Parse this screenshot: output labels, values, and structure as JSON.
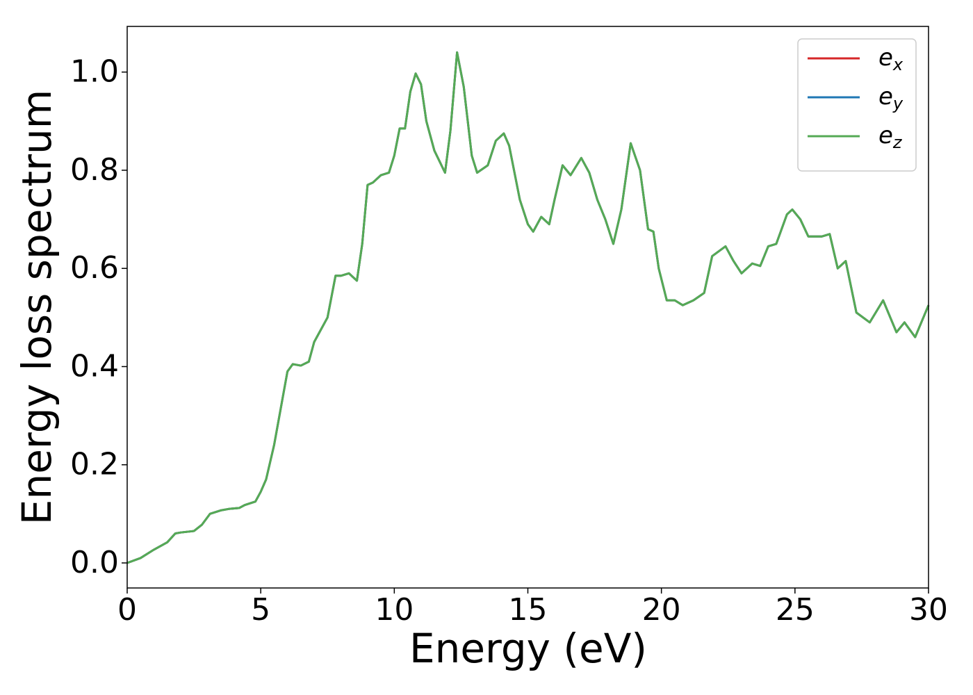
{
  "chart_data": {
    "type": "line",
    "xlabel": "Energy (eV)",
    "ylabel": "Energy loss spectrum",
    "x": [
      0,
      0.5,
      1.0,
      1.5,
      1.8,
      2.0,
      2.5,
      2.8,
      3.1,
      3.5,
      3.8,
      4.2,
      4.4,
      4.8,
      5.0,
      5.2,
      5.5,
      5.8,
      6.0,
      6.2,
      6.5,
      6.8,
      7.0,
      7.2,
      7.5,
      7.8,
      8.0,
      8.3,
      8.6,
      8.8,
      9.0,
      9.2,
      9.5,
      9.8,
      10.0,
      10.2,
      10.4,
      10.6,
      10.8,
      11.0,
      11.2,
      11.5,
      11.9,
      12.1,
      12.35,
      12.6,
      12.9,
      13.1,
      13.5,
      13.8,
      14.1,
      14.3,
      14.7,
      15.0,
      15.2,
      15.5,
      15.8,
      16.0,
      16.3,
      16.6,
      17.0,
      17.3,
      17.6,
      17.9,
      18.2,
      18.5,
      18.85,
      19.2,
      19.5,
      19.7,
      19.9,
      20.2,
      20.5,
      20.8,
      21.2,
      21.6,
      21.9,
      22.4,
      22.7,
      23.0,
      23.4,
      23.7,
      24.0,
      24.3,
      24.7,
      24.9,
      25.2,
      25.5,
      26.0,
      26.3,
      26.6,
      26.9,
      27.3,
      27.8,
      28.3,
      28.8,
      29.1,
      29.5,
      30.0
    ],
    "series": [
      {
        "name": "ex",
        "color": "#d62728",
        "values": [
          0.0,
          0.01,
          0.027,
          0.042,
          0.06,
          0.062,
          0.065,
          0.078,
          0.1,
          0.107,
          0.11,
          0.112,
          0.118,
          0.125,
          0.145,
          0.17,
          0.24,
          0.33,
          0.39,
          0.405,
          0.402,
          0.41,
          0.45,
          0.47,
          0.5,
          0.585,
          0.585,
          0.59,
          0.575,
          0.65,
          0.77,
          0.775,
          0.79,
          0.795,
          0.83,
          0.885,
          0.885,
          0.96,
          0.997,
          0.975,
          0.9,
          0.84,
          0.795,
          0.88,
          1.04,
          0.97,
          0.83,
          0.795,
          0.81,
          0.86,
          0.875,
          0.85,
          0.74,
          0.69,
          0.675,
          0.705,
          0.69,
          0.74,
          0.81,
          0.79,
          0.825,
          0.795,
          0.74,
          0.7,
          0.65,
          0.72,
          0.855,
          0.8,
          0.68,
          0.675,
          0.6,
          0.535,
          0.535,
          0.525,
          0.535,
          0.55,
          0.625,
          0.645,
          0.615,
          0.59,
          0.61,
          0.605,
          0.645,
          0.65,
          0.71,
          0.72,
          0.7,
          0.665,
          0.665,
          0.67,
          0.6,
          0.615,
          0.51,
          0.49,
          0.535,
          0.47,
          0.49,
          0.46,
          0.525
        ]
      },
      {
        "name": "ey",
        "color": "#1f77b4",
        "values": [
          0.0,
          0.01,
          0.027,
          0.042,
          0.06,
          0.062,
          0.065,
          0.078,
          0.1,
          0.107,
          0.11,
          0.112,
          0.118,
          0.125,
          0.145,
          0.17,
          0.24,
          0.33,
          0.39,
          0.405,
          0.402,
          0.41,
          0.45,
          0.47,
          0.5,
          0.585,
          0.585,
          0.59,
          0.575,
          0.65,
          0.77,
          0.775,
          0.79,
          0.795,
          0.83,
          0.885,
          0.885,
          0.96,
          0.997,
          0.975,
          0.9,
          0.84,
          0.795,
          0.88,
          1.04,
          0.97,
          0.83,
          0.795,
          0.81,
          0.86,
          0.875,
          0.85,
          0.74,
          0.69,
          0.675,
          0.705,
          0.69,
          0.74,
          0.81,
          0.79,
          0.825,
          0.795,
          0.74,
          0.7,
          0.65,
          0.72,
          0.855,
          0.8,
          0.68,
          0.675,
          0.6,
          0.535,
          0.535,
          0.525,
          0.535,
          0.55,
          0.625,
          0.645,
          0.615,
          0.59,
          0.61,
          0.605,
          0.645,
          0.65,
          0.71,
          0.72,
          0.7,
          0.665,
          0.665,
          0.67,
          0.6,
          0.615,
          0.51,
          0.49,
          0.535,
          0.47,
          0.49,
          0.46,
          0.525
        ]
      },
      {
        "name": "ez",
        "color": "#55aa55",
        "values": [
          0.0,
          0.01,
          0.027,
          0.042,
          0.06,
          0.062,
          0.065,
          0.078,
          0.1,
          0.107,
          0.11,
          0.112,
          0.118,
          0.125,
          0.145,
          0.17,
          0.24,
          0.33,
          0.39,
          0.405,
          0.402,
          0.41,
          0.45,
          0.47,
          0.5,
          0.585,
          0.585,
          0.59,
          0.575,
          0.65,
          0.77,
          0.775,
          0.79,
          0.795,
          0.83,
          0.885,
          0.885,
          0.96,
          0.997,
          0.975,
          0.9,
          0.84,
          0.795,
          0.88,
          1.04,
          0.97,
          0.83,
          0.795,
          0.81,
          0.86,
          0.875,
          0.85,
          0.74,
          0.69,
          0.675,
          0.705,
          0.69,
          0.74,
          0.81,
          0.79,
          0.825,
          0.795,
          0.74,
          0.7,
          0.65,
          0.72,
          0.855,
          0.8,
          0.68,
          0.675,
          0.6,
          0.535,
          0.535,
          0.525,
          0.535,
          0.55,
          0.625,
          0.645,
          0.615,
          0.59,
          0.61,
          0.605,
          0.645,
          0.65,
          0.71,
          0.72,
          0.7,
          0.665,
          0.665,
          0.67,
          0.6,
          0.615,
          0.51,
          0.49,
          0.535,
          0.47,
          0.49,
          0.46,
          0.525
        ]
      }
    ],
    "xlim": [
      0,
      30
    ],
    "xticks": [
      0,
      5,
      10,
      15,
      20,
      25,
      30
    ],
    "ylim": [
      -0.051,
      1.093
    ],
    "yticks": [
      {
        "value": 0,
        "label": "0.0"
      },
      {
        "value": 0.2,
        "label": "0.2"
      },
      {
        "value": 0.4,
        "label": "0.4"
      },
      {
        "value": 0.6,
        "label": "0.6"
      },
      {
        "value": 0.8,
        "label": "0.8"
      },
      {
        "value": 1.0,
        "label": "1.0"
      }
    ],
    "legend": "upper right",
    "grid": false
  }
}
